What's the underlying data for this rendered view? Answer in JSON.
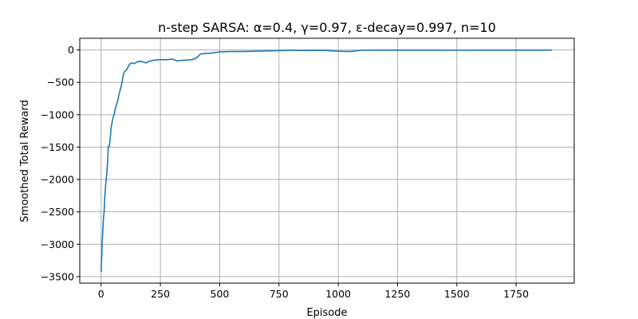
{
  "chart_data": {
    "type": "line",
    "title": "n-step SARSA: α=0.4, γ=0.97, ε-decay=0.997, n=10",
    "xlabel": "Episode",
    "ylabel": "Smoothed Total Reward",
    "xlim": [
      -90,
      1995
    ],
    "ylim": [
      -3600,
      180
    ],
    "xticks": [
      0,
      250,
      500,
      750,
      1000,
      1250,
      1500,
      1750
    ],
    "yticks": [
      0,
      -500,
      -1000,
      -1500,
      -2000,
      -2500,
      -3000,
      -3500
    ],
    "xtick_labels": [
      "0",
      "250",
      "500",
      "750",
      "1000",
      "1250",
      "1500",
      "1750"
    ],
    "ytick_labels": [
      "0",
      "−500",
      "−1000",
      "−1500",
      "−2000",
      "−2500",
      "−3000",
      "−3500"
    ],
    "grid": true,
    "colors": {
      "line": "#1f77b4",
      "grid": "#b0b0b0",
      "axis": "#000000"
    },
    "series": [
      {
        "x": [
          0,
          3,
          5,
          8,
          10,
          13,
          15,
          18,
          20,
          23,
          25,
          28,
          30,
          33,
          35,
          40,
          42,
          45,
          50,
          55,
          60,
          65,
          70,
          75,
          80,
          85,
          90,
          95,
          100,
          105,
          110,
          120,
          130,
          140,
          150,
          160,
          170,
          180,
          190,
          200,
          220,
          250,
          280,
          300,
          320,
          330,
          350,
          380,
          400,
          420,
          440,
          460,
          480,
          500,
          550,
          600,
          650,
          700,
          750,
          800,
          850,
          900,
          950,
          1000,
          1050,
          1100,
          1150,
          1200,
          1300,
          1400,
          1500,
          1600,
          1700,
          1800,
          1900
        ],
        "y": [
          -3430,
          -3150,
          -2950,
          -2750,
          -2600,
          -2500,
          -2300,
          -2150,
          -2050,
          -1950,
          -1850,
          -1700,
          -1500,
          -1480,
          -1480,
          -1300,
          -1200,
          -1150,
          -1050,
          -1000,
          -900,
          -850,
          -780,
          -700,
          -620,
          -560,
          -470,
          -360,
          -330,
          -320,
          -290,
          -220,
          -200,
          -210,
          -190,
          -180,
          -175,
          -190,
          -200,
          -180,
          -160,
          -150,
          -150,
          -140,
          -170,
          -165,
          -160,
          -150,
          -130,
          -60,
          -55,
          -50,
          -40,
          -30,
          -25,
          -25,
          -20,
          -15,
          -10,
          -5,
          -8,
          -6,
          -8,
          -20,
          -25,
          -5,
          -3,
          -3,
          -3,
          -3,
          -5,
          -3,
          -3,
          -3,
          -3
        ]
      }
    ]
  }
}
